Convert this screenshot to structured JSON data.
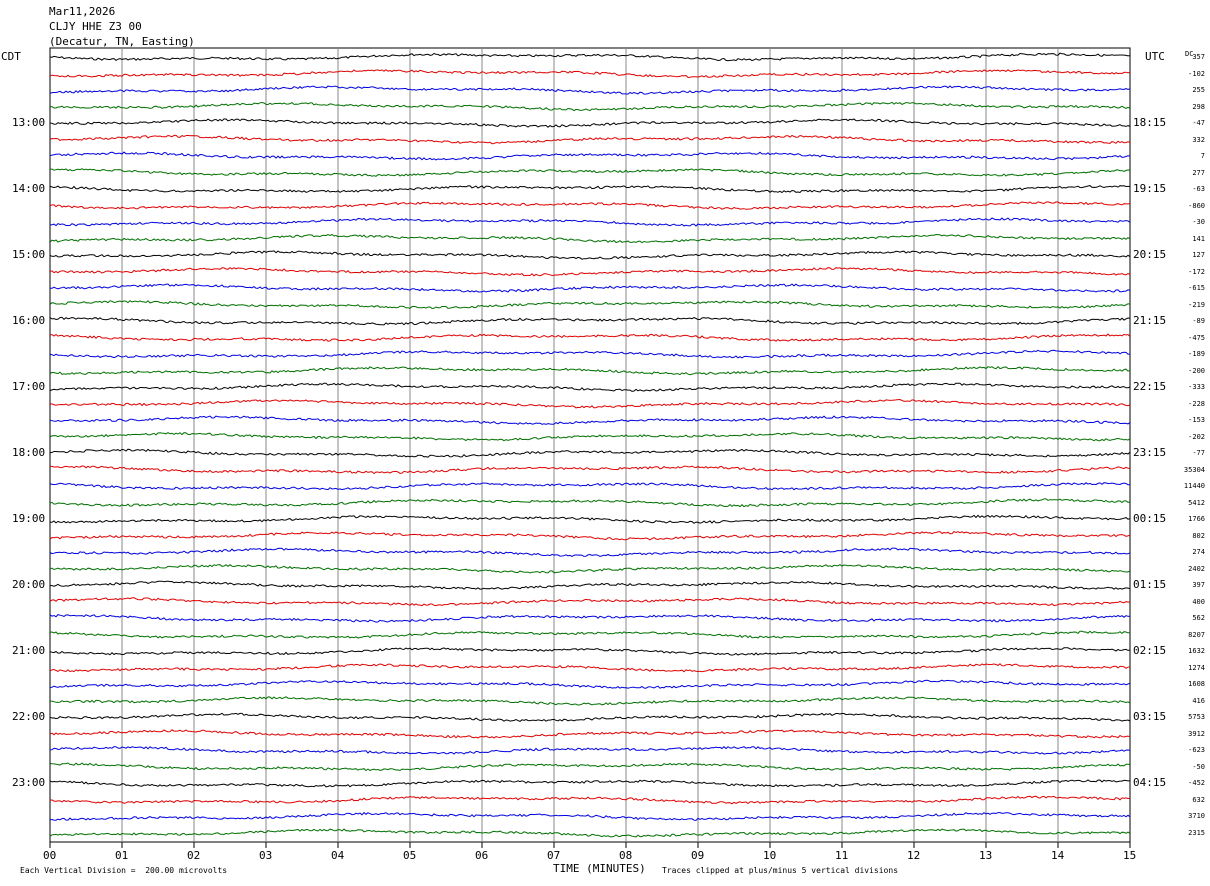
{
  "header": {
    "date": "Mar11,2026",
    "station": "CLJY HHE Z3 00",
    "location": "(Decatur, TN, Easting)"
  },
  "axis": {
    "left_tz": "CDT",
    "right_tz": "UTC",
    "dc_label": "DC",
    "xlabel": "TIME (MINUTES)",
    "division_note": "Each Vertical Division =  200.00 microvolts",
    "clip_note": "Traces clipped at plus/minus 5 vertical divisions"
  },
  "chart_data": {
    "type": "line",
    "xlim": [
      0,
      15
    ],
    "x_ticks": [
      "00",
      "01",
      "02",
      "03",
      "04",
      "05",
      "06",
      "07",
      "08",
      "09",
      "10",
      "11",
      "12",
      "13",
      "14",
      "15"
    ],
    "left_hours": [
      "13:00",
      "14:00",
      "15:00",
      "16:00",
      "17:00",
      "18:00",
      "19:00",
      "20:00",
      "21:00",
      "22:00",
      "23:00"
    ],
    "right_hours": [
      "18:15",
      "19:15",
      "20:15",
      "21:15",
      "22:15",
      "23:15",
      "00:15",
      "01:15",
      "02:15",
      "03:15",
      "04:15"
    ],
    "trace_colors": [
      "#000000",
      "#e00000",
      "#0000e0",
      "#007000"
    ],
    "dc_offsets": [
      "357",
      "-102",
      "255",
      "298",
      "-47",
      "332",
      "7",
      "277",
      "-63",
      "-860",
      "-30",
      "141",
      "127",
      "-172",
      "-615",
      "-219",
      "-89",
      "-475",
      "-189",
      "-200",
      "-333",
      "-228",
      "-153",
      "-202",
      "-77",
      "35304",
      "11440",
      "5412",
      "1766",
      "802",
      "274",
      "2402",
      "397",
      "400",
      "562",
      "8207",
      "1632",
      "1274",
      "1608",
      "416",
      "5753",
      "3912",
      "-623",
      "-50",
      "-452",
      "632",
      "3710",
      "2315"
    ]
  }
}
